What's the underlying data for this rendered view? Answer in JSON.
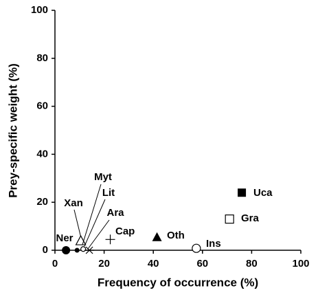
{
  "chart_data": {
    "type": "scatter",
    "x_label": "Frequency of occurrence (%)",
    "y_label": "Prey-specific weight (%)",
    "xlim": [
      0,
      100
    ],
    "ylim": [
      0,
      100
    ],
    "xticks": [
      0,
      20,
      40,
      60,
      80,
      100
    ],
    "yticks": [
      0,
      20,
      40,
      60,
      80,
      100
    ],
    "grid": false,
    "points": [
      {
        "label": "Ner",
        "x": 4.5,
        "y": 0,
        "marker": "filled-circle"
      },
      {
        "label": "Xan",
        "x": 10.5,
        "y": 4,
        "marker": "open-triangle"
      },
      {
        "label": "Myt",
        "x": 9,
        "y": 0,
        "marker": "small-filled-circle"
      },
      {
        "label": "Lit",
        "x": 11.5,
        "y": 0.5,
        "marker": "small-open-circle"
      },
      {
        "label": "Ara",
        "x": 14,
        "y": 0,
        "marker": "asterisk"
      },
      {
        "label": "Cap",
        "x": 22.5,
        "y": 4.5,
        "marker": "plus"
      },
      {
        "label": "Oth",
        "x": 41.5,
        "y": 5.5,
        "marker": "filled-triangle"
      },
      {
        "label": "Ins",
        "x": 57.5,
        "y": 0.8,
        "marker": "open-circle"
      },
      {
        "label": "Gra",
        "x": 71,
        "y": 13,
        "marker": "open-square"
      },
      {
        "label": "Uca",
        "x": 76,
        "y": 24,
        "marker": "filled-square"
      }
    ]
  }
}
